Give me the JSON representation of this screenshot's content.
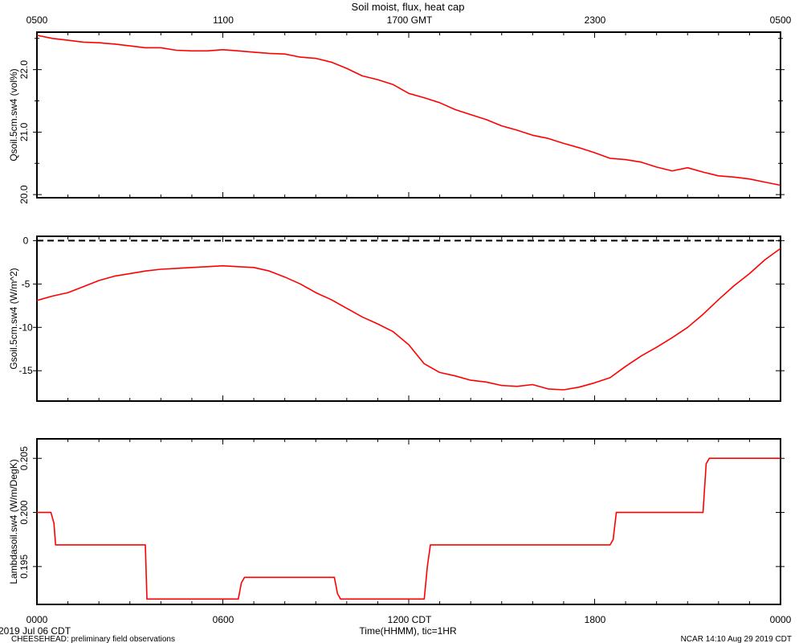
{
  "title": "Soil moist, flux, heat cap",
  "top_axis": {
    "labels": [
      "0500",
      "1100",
      "1700 GMT",
      "2300",
      "0500"
    ]
  },
  "bottom_axis": {
    "labels": [
      "0000",
      "0600",
      "1200 CDT",
      "1800",
      "0000"
    ],
    "xlabel": "Time(HHMM), tic=1HR"
  },
  "footer": {
    "date": "2019 Jul 06 CDT",
    "project": "CHEESEHEAD: preliminary field observations",
    "stamp": "NCAR 14:10 Aug 29 2019 CDT"
  },
  "colors": {
    "series": "#ff0000",
    "axes": "#000000",
    "zero_line": "#000000"
  },
  "chart_data": [
    {
      "type": "line",
      "ylabel": "Qsoil.5cm.sw4 (vol%)",
      "yticks": [
        "20.0",
        "21.0",
        "22.0"
      ],
      "ylim": [
        19.95,
        22.6
      ],
      "xlim": [
        0,
        24
      ],
      "series": [
        {
          "x": [
            0,
            0.5,
            1,
            1.5,
            2,
            2.5,
            3,
            3.5,
            4,
            4.5,
            5,
            5.5,
            6,
            6.5,
            7,
            7.5,
            8,
            8.5,
            9,
            9.5,
            10,
            10.5,
            11,
            11.5,
            12,
            12.5,
            13,
            13.5,
            14,
            14.5,
            15,
            15.5,
            16,
            16.5,
            17,
            17.5,
            18,
            18.5,
            19,
            19.5,
            20,
            20.5,
            21,
            21.5,
            22,
            22.5,
            23,
            23.5,
            24
          ],
          "y": [
            22.55,
            22.5,
            22.47,
            22.44,
            22.43,
            22.41,
            22.38,
            22.35,
            22.35,
            22.31,
            22.3,
            22.3,
            22.32,
            22.3,
            22.28,
            22.26,
            22.25,
            22.2,
            22.18,
            22.12,
            22.02,
            21.9,
            21.84,
            21.76,
            21.62,
            21.55,
            21.47,
            21.36,
            21.28,
            21.2,
            21.1,
            21.03,
            20.95,
            20.9,
            20.82,
            20.75,
            20.67,
            20.58,
            20.56,
            20.52,
            20.44,
            20.38,
            20.43,
            20.36,
            20.3,
            20.28,
            20.25,
            20.2,
            20.15
          ]
        }
      ]
    },
    {
      "type": "line",
      "ylabel": "Gsoil.5cm.sw4 (W/m^2)",
      "yticks": [
        "0",
        "-5",
        "-10",
        "-15"
      ],
      "ylim": [
        -18.5,
        0.5
      ],
      "xlim": [
        0,
        24
      ],
      "reference_line": 0,
      "series": [
        {
          "x": [
            0,
            0.5,
            1,
            1.5,
            2,
            2.5,
            3,
            3.5,
            4,
            4.5,
            5,
            5.5,
            6,
            6.5,
            7,
            7.5,
            8,
            8.5,
            9,
            9.5,
            10,
            10.5,
            11,
            11.5,
            12,
            12.5,
            13,
            13.5,
            14,
            14.5,
            15,
            15.5,
            16,
            16.5,
            17,
            17.5,
            18,
            18.5,
            19,
            19.5,
            20,
            20.5,
            21,
            21.5,
            22,
            22.5,
            23,
            23.5,
            24
          ],
          "y": [
            -6.9,
            -6.4,
            -6.0,
            -5.3,
            -4.6,
            -4.1,
            -3.8,
            -3.5,
            -3.3,
            -3.2,
            -3.1,
            -3.0,
            -2.9,
            -3.0,
            -3.1,
            -3.5,
            -4.2,
            -5.0,
            -6.0,
            -6.8,
            -7.8,
            -8.8,
            -9.6,
            -10.5,
            -12.0,
            -14.2,
            -15.2,
            -15.6,
            -16.1,
            -16.3,
            -16.7,
            -16.8,
            -16.6,
            -17.1,
            -17.2,
            -16.9,
            -16.4,
            -15.8,
            -14.5,
            -13.3,
            -12.3,
            -11.2,
            -10.0,
            -8.5,
            -6.8,
            -5.2,
            -3.8,
            -2.2,
            -0.9
          ]
        }
      ]
    },
    {
      "type": "line",
      "ylabel": "Lambdasoil.sw4 (W/m/DegK)",
      "yticks": [
        "0.195",
        "0.200",
        "0.205"
      ],
      "ylim": [
        0.1915,
        0.2068
      ],
      "xlim": [
        0,
        24
      ],
      "series": [
        {
          "x": [
            0,
            0.45,
            0.55,
            0.6,
            3.5,
            3.55,
            6.5,
            6.6,
            6.7,
            9.6,
            9.7,
            9.8,
            12.5,
            12.6,
            12.7,
            18.5,
            18.6,
            18.7,
            21.5,
            21.6,
            21.7,
            24
          ],
          "y": [
            0.2,
            0.2,
            0.199,
            0.197,
            0.197,
            0.192,
            0.192,
            0.1935,
            0.194,
            0.194,
            0.1925,
            0.192,
            0.192,
            0.195,
            0.197,
            0.197,
            0.1975,
            0.2,
            0.2,
            0.2045,
            0.205,
            0.205
          ]
        }
      ]
    }
  ]
}
